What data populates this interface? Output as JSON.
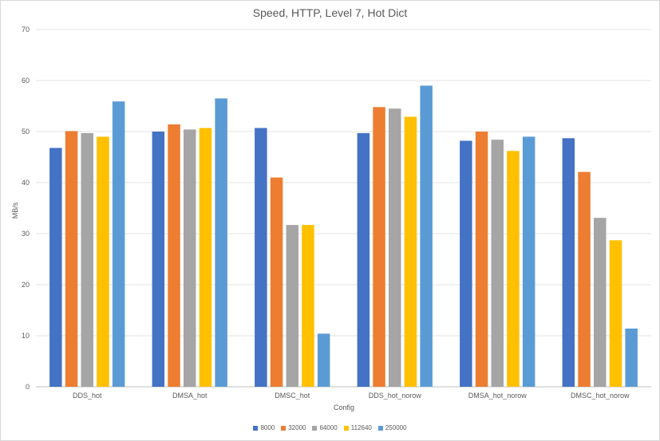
{
  "chart_data": {
    "type": "bar",
    "title": "Speed, HTTP, Level 7, Hot Dict",
    "xlabel": "Config",
    "ylabel": "MB/s",
    "ylim": [
      0,
      70
    ],
    "yticks": [
      0,
      10,
      20,
      30,
      40,
      50,
      60,
      70
    ],
    "grid": true,
    "legend_position": "bottom",
    "categories": [
      "DDS_hot",
      "DMSA_hot",
      "DMSC_hot",
      "DDS_hot_norow",
      "DMSA_hot_norow",
      "DMSC_hot_norow"
    ],
    "series": [
      {
        "name": "8000",
        "color": "#4472c4",
        "values": [
          46.8,
          50.0,
          50.7,
          49.7,
          48.2,
          48.7
        ]
      },
      {
        "name": "32000",
        "color": "#ed7d31",
        "values": [
          50.1,
          51.4,
          41.0,
          54.8,
          50.0,
          42.1
        ]
      },
      {
        "name": "64000",
        "color": "#a5a5a5",
        "values": [
          49.7,
          50.4,
          31.7,
          54.5,
          48.4,
          33.1
        ]
      },
      {
        "name": "112640",
        "color": "#ffc000",
        "values": [
          49.0,
          50.7,
          31.7,
          52.9,
          46.2,
          28.7
        ]
      },
      {
        "name": "250000",
        "color": "#5b9bd5",
        "values": [
          55.9,
          56.5,
          10.4,
          59.0,
          49.0,
          11.4
        ]
      }
    ]
  }
}
